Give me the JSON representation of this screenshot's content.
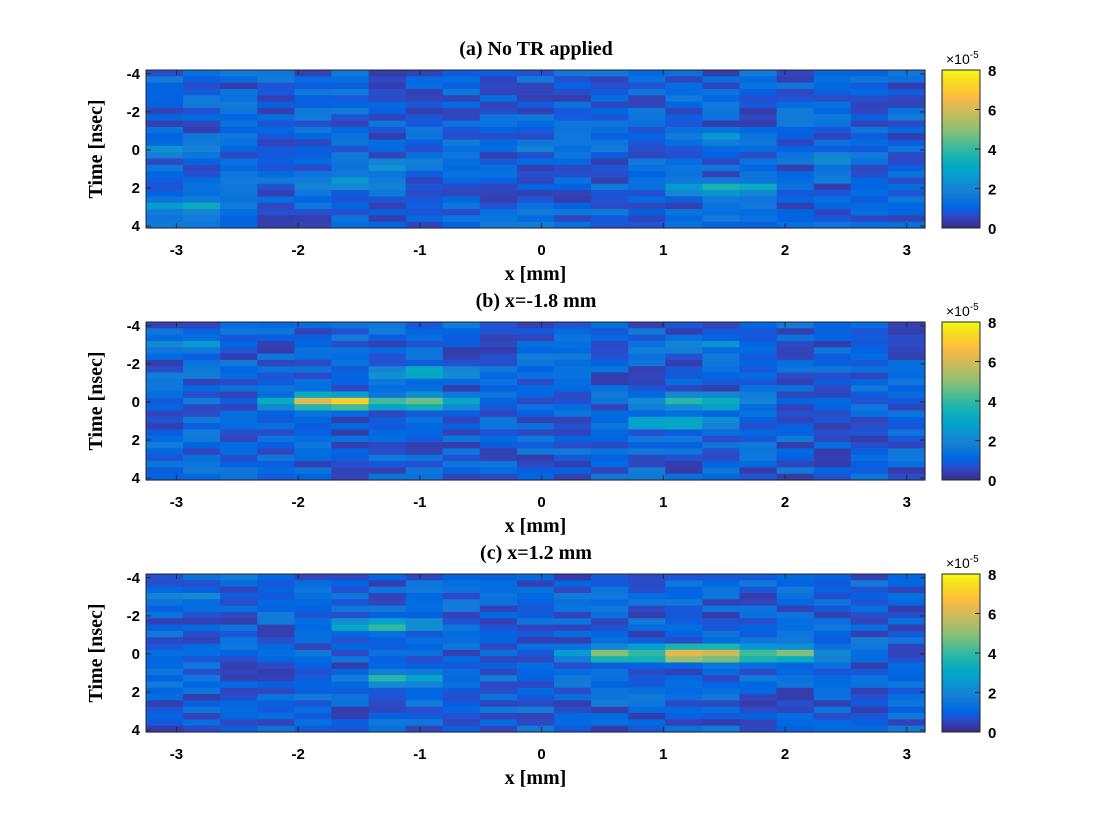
{
  "chart_data": [
    {
      "type": "heatmap",
      "title": "(a) No TR applied",
      "xlabel": "x [mm]",
      "ylabel": "Time [nsec]",
      "xlim": [
        -3.25,
        3.15
      ],
      "ylim": [
        -4.2,
        4.1
      ],
      "y_reversed": true,
      "x_ticks": [
        "-3",
        "-2",
        "-1",
        "0",
        "1",
        "2",
        "3"
      ],
      "y_ticks": [
        "-4",
        "-2",
        "0",
        "2",
        "4"
      ],
      "colormap": "parula",
      "clim": [
        0,
        8
      ],
      "colorbar_ticks": [
        "0",
        "2",
        "4",
        "6",
        "8"
      ],
      "colorbar_exponent": "×10",
      "colorbar_exponent_power": "-5",
      "hotspots": [
        {
          "x": -3.1,
          "t": 0.0,
          "value": 2.8
        },
        {
          "x": -2.9,
          "t": 3.0,
          "value": 3.0
        },
        {
          "x": -1.6,
          "t": 1.8,
          "value": 2.8
        },
        {
          "x": -1.2,
          "t": 0.8,
          "value": 2.4
        },
        {
          "x": 0.0,
          "t": -0.2,
          "value": 2.2
        },
        {
          "x": 1.5,
          "t": 2.0,
          "value": 4.0
        },
        {
          "x": 1.5,
          "t": -0.6,
          "value": 2.6
        },
        {
          "x": 2.4,
          "t": 0.4,
          "value": 2.6
        }
      ]
    },
    {
      "type": "heatmap",
      "title": "(b) x=-1.8 mm",
      "xlabel": "x [mm]",
      "ylabel": "Time [nsec]",
      "xlim": [
        -3.25,
        3.15
      ],
      "ylim": [
        -4.2,
        4.1
      ],
      "y_reversed": true,
      "x_ticks": [
        "-3",
        "-2",
        "-1",
        "0",
        "1",
        "2",
        "3"
      ],
      "y_ticks": [
        "-4",
        "-2",
        "0",
        "2",
        "4"
      ],
      "colormap": "parula",
      "clim": [
        0,
        8
      ],
      "colorbar_ticks": [
        "0",
        "2",
        "4",
        "6",
        "8"
      ],
      "colorbar_exponent": "×10",
      "colorbar_exponent_power": "-5",
      "hotspots": [
        {
          "x": -1.7,
          "t": 0.0,
          "value": 7.0
        },
        {
          "x": -1.0,
          "t": 0.0,
          "value": 4.5
        },
        {
          "x": -1.0,
          "t": -1.5,
          "value": 3.6
        },
        {
          "x": 1.3,
          "t": 0.0,
          "value": 4.4
        },
        {
          "x": 1.1,
          "t": 1.1,
          "value": 3.8
        },
        {
          "x": 1.3,
          "t": -3.0,
          "value": 2.6
        },
        {
          "x": -2.9,
          "t": -3.0,
          "value": 2.4
        }
      ]
    },
    {
      "type": "heatmap",
      "title": "(c) x=1.2 mm",
      "xlabel": "x [mm]",
      "ylabel": "Time [nsec]",
      "xlim": [
        -3.25,
        3.15
      ],
      "ylim": [
        -4.2,
        4.1
      ],
      "y_reversed": true,
      "x_ticks": [
        "-3",
        "-2",
        "-1",
        "0",
        "1",
        "2",
        "3"
      ],
      "y_ticks": [
        "-4",
        "-2",
        "0",
        "2",
        "4"
      ],
      "colormap": "parula",
      "clim": [
        0,
        8
      ],
      "colorbar_ticks": [
        "0",
        "2",
        "4",
        "6",
        "8"
      ],
      "colorbar_exponent": "×10",
      "colorbar_exponent_power": "-5",
      "hotspots": [
        {
          "x": 1.25,
          "t": 0.0,
          "value": 8.0
        },
        {
          "x": 0.7,
          "t": 0.0,
          "value": 5.0
        },
        {
          "x": 1.9,
          "t": 0.0,
          "value": 5.5
        },
        {
          "x": -1.3,
          "t": -1.5,
          "value": 3.8
        },
        {
          "x": -1.2,
          "t": 1.3,
          "value": 3.6
        },
        {
          "x": -3.0,
          "t": -3.0,
          "value": 2.4
        }
      ]
    }
  ]
}
